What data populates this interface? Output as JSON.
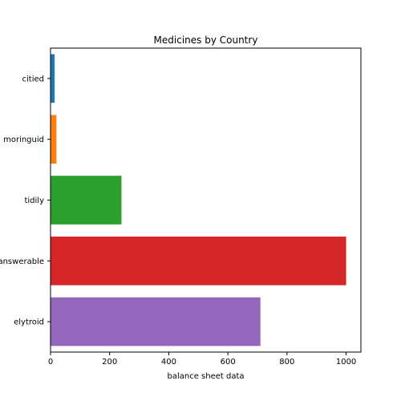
{
  "chart_data": {
    "type": "bar",
    "orientation": "horizontal",
    "title": "Medicines by Country",
    "xlabel": "balance sheet data",
    "ylabel": "",
    "categories": [
      "citied",
      "moringuid",
      "tidily",
      "answerable",
      "elytroid"
    ],
    "values": [
      14,
      20,
      240,
      1000,
      710
    ],
    "colors": [
      "#1f77b4",
      "#ff7f0e",
      "#2ca02c",
      "#d62728",
      "#9467bd"
    ],
    "xlim": [
      0,
      1050
    ],
    "xticks": [
      0,
      200,
      400,
      600,
      800,
      1000
    ],
    "grid": false,
    "legend": "none"
  }
}
